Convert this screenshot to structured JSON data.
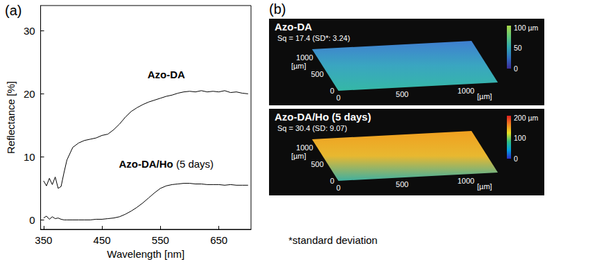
{
  "chart_data": {
    "type": "line",
    "panel_label": "(a)",
    "x_label": "Wavelength [nm]",
    "y_label": "Reflectance [%]",
    "xlim": [
      345,
      705
    ],
    "xticks": [
      350,
      450,
      550,
      650
    ],
    "ylim": [
      -1.5,
      34
    ],
    "yticks": [
      0,
      10,
      20,
      30
    ],
    "grid": false,
    "x": [
      350,
      355,
      360,
      365,
      370,
      375,
      380,
      385,
      390,
      400,
      410,
      420,
      430,
      440,
      450,
      460,
      470,
      480,
      490,
      500,
      510,
      520,
      530,
      540,
      550,
      560,
      570,
      580,
      590,
      600,
      610,
      620,
      630,
      640,
      650,
      660,
      670,
      680,
      690,
      700
    ],
    "series": [
      {
        "name": "Azo-DA",
        "color": "#000000",
        "values": [
          6.2,
          5.4,
          6.6,
          5.6,
          6.8,
          5.0,
          5.3,
          7.5,
          9.5,
          11.5,
          12.2,
          12.6,
          12.8,
          13.0,
          13.4,
          13.6,
          14.3,
          15.2,
          16.3,
          17.2,
          17.8,
          18.3,
          18.7,
          19.0,
          19.3,
          19.6,
          19.8,
          20.1,
          20.3,
          20.4,
          20.3,
          20.5,
          20.3,
          20.4,
          20.3,
          20.5,
          20.2,
          20.3,
          20.1,
          20.0
        ]
      },
      {
        "name": "Azo-DA/Ho (5 days)",
        "color": "#000000",
        "values": [
          0.3,
          0.6,
          0.1,
          0.5,
          0.2,
          0.3,
          0.1,
          0.0,
          0.0,
          0.0,
          0.0,
          0.0,
          0.0,
          0.1,
          0.1,
          0.2,
          0.3,
          0.5,
          0.9,
          1.4,
          2.0,
          2.7,
          3.5,
          4.3,
          5.0,
          5.4,
          5.6,
          5.7,
          5.8,
          5.8,
          5.7,
          5.7,
          5.6,
          5.6,
          5.6,
          5.5,
          5.6,
          5.5,
          5.5,
          5.5
        ]
      }
    ]
  },
  "surface_panel": {
    "panel_label": "(b)",
    "footnote": "*standard deviation",
    "surfaces": [
      {
        "title": "Azo-DA",
        "stats": "Sq = 17.4 (SD*: 3.24)",
        "axis_unit": "[µm]",
        "x_ticks": [
          0,
          500,
          1000
        ],
        "y_ticks": [
          0,
          500,
          1000
        ],
        "surface_colors": [
          "#3f7fd0",
          "#3aa6c0",
          "#35b8a6"
        ],
        "colorbar": {
          "range": [
            0,
            105
          ],
          "ticks": [
            0,
            50,
            {
              "value": 100,
              "label": "100 µm"
            }
          ],
          "colors": [
            "#3b2a98",
            "#2f6fc0",
            "#30a8b0",
            "#60c878",
            "#a8d848"
          ]
        }
      },
      {
        "title": "Azo-DA/Ho (5 days)",
        "stats": "Sq = 30.4 (SD: 9.07)",
        "axis_unit": "[µm]",
        "x_ticks": [
          0,
          500,
          1000
        ],
        "y_ticks": [
          0,
          500,
          1000
        ],
        "surface_colors": [
          "#f0a020",
          "#e8b830",
          "#40b0a0"
        ],
        "colorbar": {
          "range": [
            0,
            210
          ],
          "ticks": [
            0,
            100,
            {
              "value": 200,
              "label": "200 µm"
            }
          ],
          "colors": [
            "#2c2cc8",
            "#00a0e0",
            "#30c080",
            "#e8e020",
            "#f08020",
            "#e02020"
          ]
        }
      }
    ]
  }
}
